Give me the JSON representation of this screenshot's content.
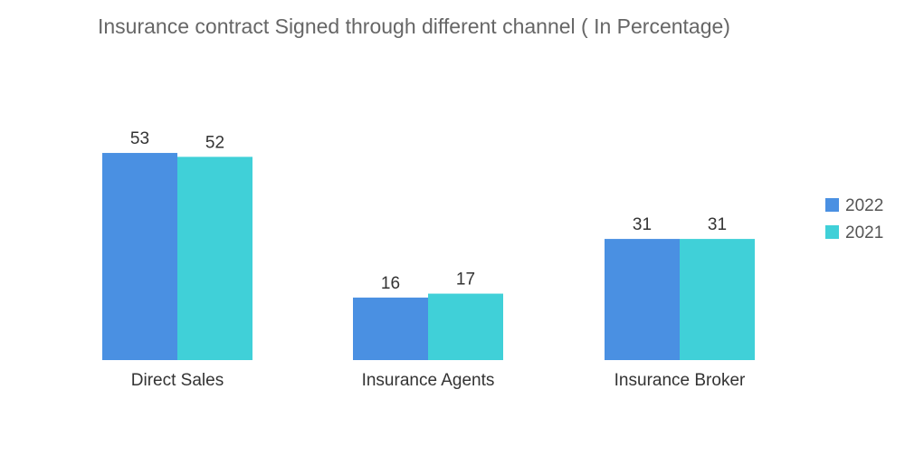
{
  "chart_data": {
    "type": "bar",
    "title": "Insurance contract Signed through different channel ( In Percentage)",
    "categories": [
      "Direct Sales",
      "Insurance Agents",
      "Insurance Broker"
    ],
    "series": [
      {
        "name": "2022",
        "values": [
          53,
          16,
          31
        ],
        "color": "#4a90e2"
      },
      {
        "name": "2021",
        "values": [
          52,
          17,
          31
        ],
        "color": "#40d0d8"
      }
    ],
    "xlabel": "",
    "ylabel": "",
    "ylim": [
      0,
      53
    ],
    "grid": false,
    "legend_position": "right",
    "data_labels": true
  }
}
